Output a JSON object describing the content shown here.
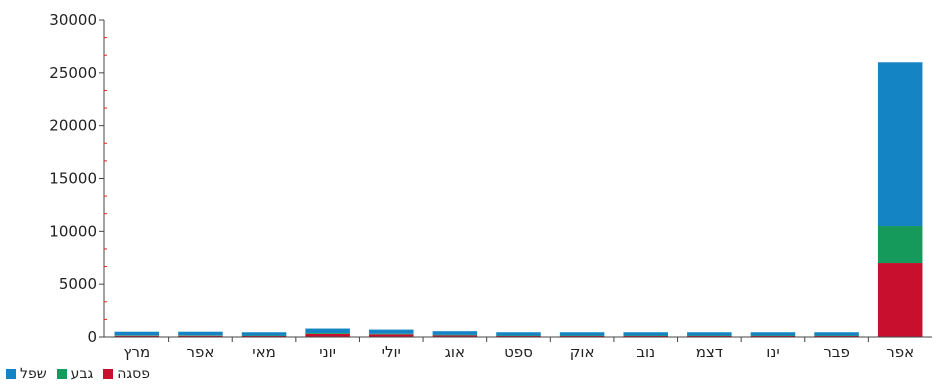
{
  "chart_data": {
    "type": "bar",
    "stacked": true,
    "categories": [
      "מרץ",
      "אפר",
      "מאי",
      "יוני",
      "יולי",
      "אוג",
      "ספט",
      "אוק",
      "נוב",
      "דצמ",
      "ינו",
      "פבר",
      "אפר"
    ],
    "series": [
      {
        "name": "פסגה",
        "color": "#c8102e",
        "values": [
          120,
          120,
          100,
          300,
          250,
          150,
          100,
          100,
          100,
          100,
          100,
          100,
          7000
        ]
      },
      {
        "name": "גבע",
        "color": "#159a5c",
        "values": [
          50,
          50,
          40,
          80,
          60,
          50,
          40,
          40,
          40,
          40,
          40,
          40,
          3500
        ]
      },
      {
        "name": "שפל",
        "color": "#1484c4",
        "values": [
          330,
          330,
          310,
          420,
          390,
          350,
          310,
          310,
          310,
          310,
          310,
          310,
          15500
        ]
      }
    ],
    "yticks": [
      0,
      5000,
      10000,
      15000,
      20000,
      25000,
      30000
    ],
    "ylim": [
      0,
      30000
    ],
    "grid": false,
    "legend_position": "bottom-left"
  }
}
